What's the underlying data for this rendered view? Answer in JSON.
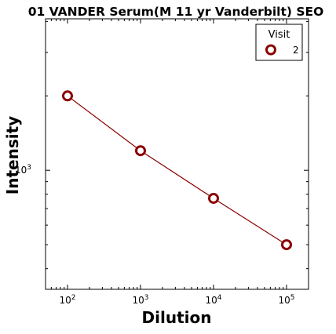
{
  "chart_data": {
    "type": "line",
    "title": "01 VANDER Serum(M 11 yr Vanderbilt) SEO",
    "xlabel": "Dilution",
    "ylabel": "Intensity",
    "xscale": "log",
    "yscale": "log",
    "xlim": [
      50,
      200000
    ],
    "ylim": [
      330,
      4100
    ],
    "grid": false,
    "legend": {
      "title": "Visit",
      "placement": "top-right"
    },
    "xticks": [
      {
        "value": 100,
        "base": "10",
        "exp": "2"
      },
      {
        "value": 1000,
        "base": "10",
        "exp": "3"
      },
      {
        "value": 10000,
        "base": "10",
        "exp": "4"
      },
      {
        "value": 100000,
        "base": "10",
        "exp": "5"
      }
    ],
    "yticks": [
      {
        "value": 1000,
        "base": "10",
        "exp": "3"
      }
    ],
    "series": [
      {
        "name": "2",
        "color": "#8b0000",
        "marker": "open-circle",
        "x": [
          100,
          1000,
          10000,
          100000
        ],
        "y": [
          2000,
          1200,
          770,
          500
        ]
      }
    ]
  }
}
